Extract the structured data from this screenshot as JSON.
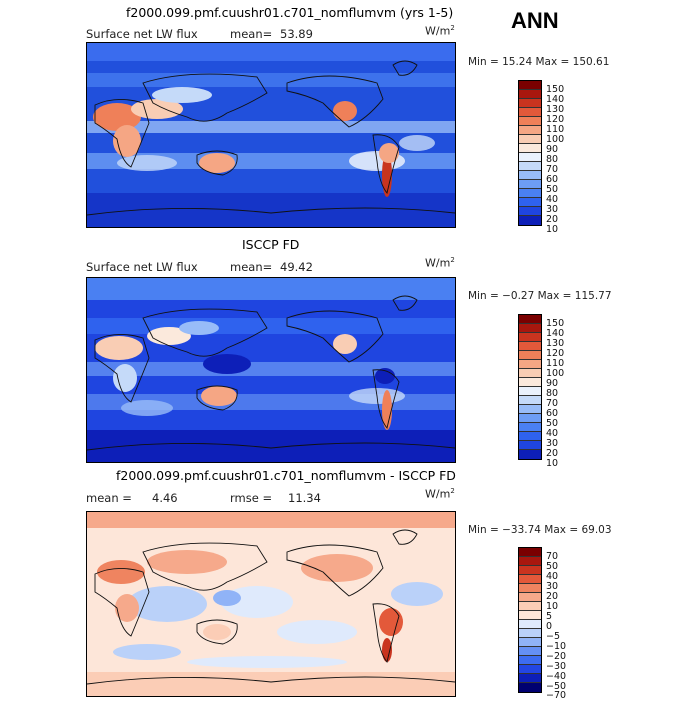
{
  "annual_label": "ANN",
  "colors": {
    "abs_scale": [
      "#000070",
      "#0d1fb8",
      "#1f45e0",
      "#2f62ee",
      "#4a80f2",
      "#6d9df5",
      "#98bcf8",
      "#c5daf9",
      "#eaf1fc",
      "#fbe9dc",
      "#f9cdb4",
      "#f5a684",
      "#ef8059",
      "#e2593a",
      "#c9341f",
      "#a8170e",
      "#7a0000"
    ],
    "diff_scale": [
      "#000070",
      "#0d1fb8",
      "#2346e3",
      "#3d6cf0",
      "#6590f4",
      "#90b3f7",
      "#bad1f9",
      "#dfeafc",
      "#fde6d9",
      "#fbcdb6",
      "#f6a98b",
      "#ef8460",
      "#e3593a",
      "#c9341f",
      "#a8170e",
      "#7a0000"
    ]
  },
  "panels": [
    {
      "title": "f2000.099.pmf.cuushr01.c701_nomflumvm (yrs 1-5)",
      "subtitle_left": "Surface net LW flux",
      "mean_label": "mean=",
      "mean_value": "53.89",
      "units": "W/m",
      "units_exp": "2",
      "minmax": "Min =  15.24 Max = 150.61",
      "colorbar_labels": [
        "150",
        "140",
        "130",
        "120",
        "110",
        "100",
        "90",
        "80",
        "70",
        "60",
        "50",
        "40",
        "30",
        "20",
        "10"
      ]
    },
    {
      "title": "ISCCP FD",
      "subtitle_left": "Surface net LW flux",
      "mean_label": "mean=",
      "mean_value": "49.42",
      "units": "W/m",
      "units_exp": "2",
      "minmax": "Min =  −0.27 Max = 115.77",
      "colorbar_labels": [
        "150",
        "140",
        "130",
        "120",
        "110",
        "100",
        "90",
        "80",
        "70",
        "60",
        "50",
        "40",
        "30",
        "20",
        "10"
      ]
    },
    {
      "title": "f2000.099.pmf.cuushr01.c701_nomflumvm - ISCCP FD",
      "mean_label": "mean =",
      "mean_value": "4.46",
      "rmse_label": "rmse =",
      "rmse_value": "11.34",
      "units": "W/m",
      "units_exp": "2",
      "minmax": "Min = −33.74 Max =  69.03",
      "colorbar_labels": [
        "70",
        "50",
        "40",
        "30",
        "20",
        "10",
        "5",
        "0",
        "−5",
        "−10",
        "−20",
        "−30",
        "−40",
        "−50",
        "−70"
      ]
    }
  ]
}
